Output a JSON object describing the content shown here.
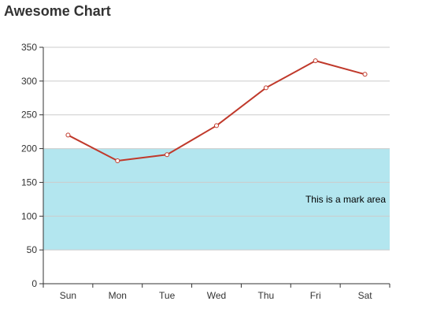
{
  "chart_data": {
    "type": "line",
    "title": "Awesome Chart",
    "categories": [
      "Sun",
      "Mon",
      "Tue",
      "Wed",
      "Thu",
      "Fri",
      "Sat"
    ],
    "series": [
      {
        "values": [
          220,
          182,
          191,
          234,
          290,
          330,
          310
        ],
        "color": "#c0392b"
      }
    ],
    "ylim": [
      0,
      350
    ],
    "yticks": [
      0,
      50,
      100,
      150,
      200,
      250,
      300,
      350
    ],
    "grid": true,
    "mark_area": {
      "label": "This is a mark area",
      "y_from": 50,
      "y_to": 200,
      "color": "#b3e6ef"
    }
  }
}
